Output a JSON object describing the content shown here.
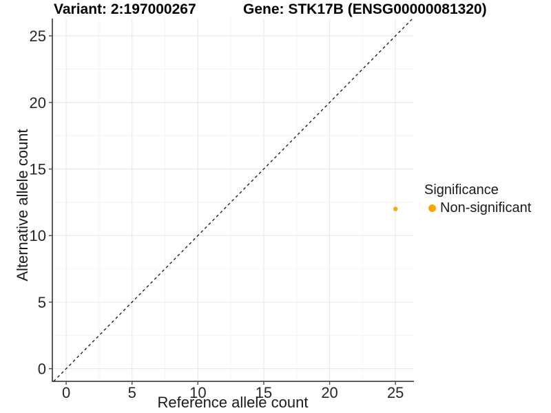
{
  "chart_data": {
    "type": "scatter",
    "titles": {
      "left": "Variant: 2:197000267",
      "right": "Gene: STK17B (ENSG00000081320)"
    },
    "xlabel": "Reference allele count",
    "ylabel": "Alternative allele count",
    "xticks": [
      0,
      5,
      10,
      15,
      20,
      25
    ],
    "yticks": [
      0,
      5,
      10,
      15,
      20,
      25
    ],
    "xlim": [
      -1.05,
      26.35
    ],
    "ylim": [
      -0.95,
      26.3
    ],
    "minor_tick_start": 2.5,
    "minor_tick_step": 5,
    "grid": {
      "major_color": "#e9e9e9",
      "minor_color": "#f4f4f4"
    },
    "axis_color": "#474747",
    "identity_line": {
      "style": "dashed",
      "color": "#111111",
      "equation": "y = x"
    },
    "series": [
      {
        "name": "Non-significant",
        "color": "#FFA500",
        "points": [
          {
            "x": 25,
            "y": 12
          }
        ]
      }
    ],
    "legend": {
      "title": "Significance",
      "position": "right",
      "entries": [
        {
          "label": "Non-significant",
          "color": "#FFA500"
        }
      ]
    }
  }
}
